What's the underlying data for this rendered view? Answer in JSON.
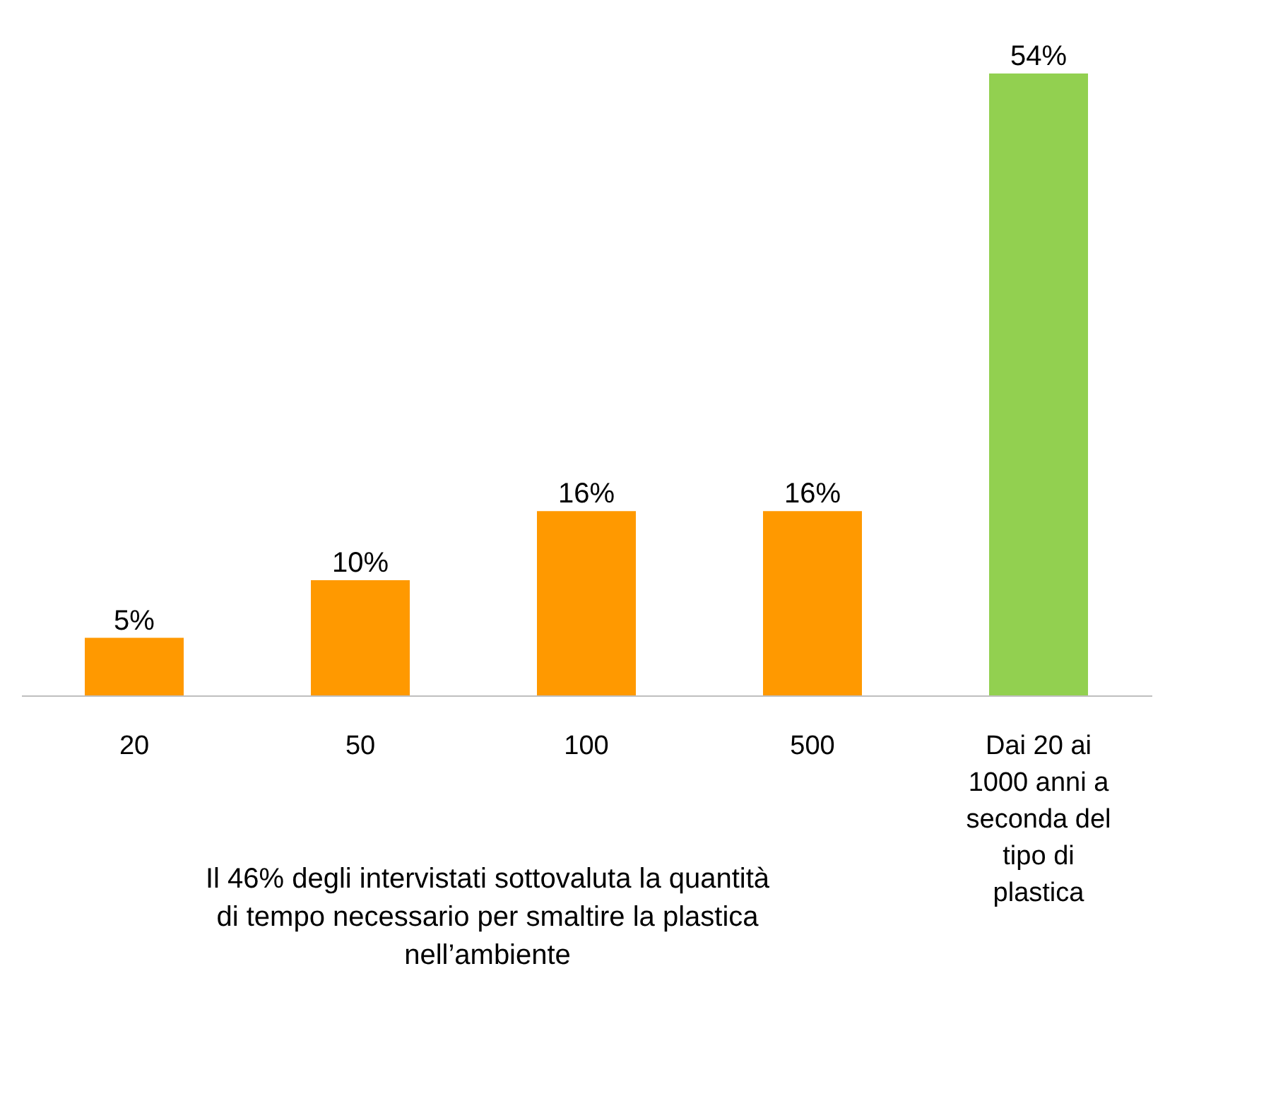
{
  "chart_data": {
    "type": "bar",
    "categories": [
      "20",
      "50",
      "100",
      "500",
      "Dai 20 ai 1000 anni a seconda del tipo di plastica"
    ],
    "values": [
      5,
      10,
      16,
      16,
      54
    ],
    "colors": [
      "#ff9900",
      "#ff9900",
      "#ff9900",
      "#ff9900",
      "#92d050"
    ],
    "value_labels": [
      "5%",
      "10%",
      "16%",
      "16%",
      "54%"
    ],
    "annotations": [
      "Il  46% degli intervistati sottovaluta la quantità di tempo necessario per smaltire la plastica nell’ambiente"
    ]
  }
}
